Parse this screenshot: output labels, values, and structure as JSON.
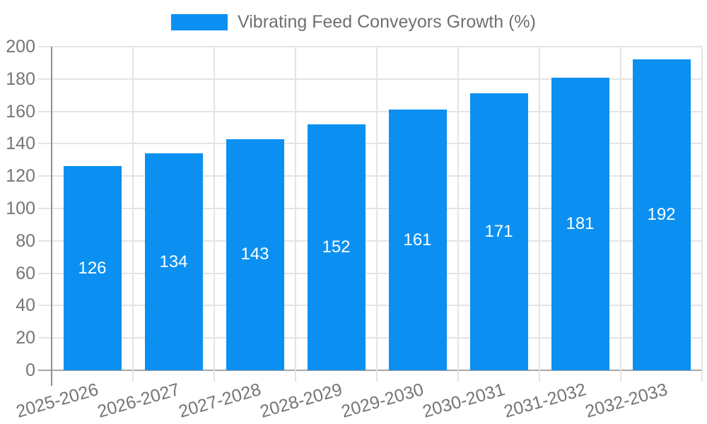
{
  "legend": {
    "position": "top-center",
    "label": "Vibrating Feed Conveyors Growth (%)"
  },
  "chart_data": {
    "type": "bar",
    "title": "",
    "xlabel": "",
    "ylabel": "",
    "categories": [
      "2025-2026",
      "2026-2027",
      "2027-2028",
      "2028-2029",
      "2029-2030",
      "2030-2031",
      "2031-2032",
      "2032-2033"
    ],
    "series": [
      {
        "name": "Vibrating Feed Conveyors Growth (%)",
        "color": "#0b90f2",
        "values": [
          126,
          134,
          143,
          152,
          161,
          171,
          181,
          192
        ]
      }
    ],
    "ylim": [
      0,
      200
    ],
    "ytick_step": 20,
    "yticks": [
      0,
      20,
      40,
      60,
      80,
      100,
      120,
      140,
      160,
      180,
      200
    ],
    "grid": true,
    "legend_position": "top-center",
    "value_labels_position": "inside-center",
    "x_tick_rotation_deg": -16
  },
  "colors": {
    "bar": "#0b90f2",
    "grid": "#e4e4e4",
    "x_axis": "#a6a6a6",
    "y_axis": "#8f8f8f",
    "tick_label": "#757575",
    "legend_text": "#707070",
    "value_label": "#ffffff",
    "background": "#ffffff"
  }
}
